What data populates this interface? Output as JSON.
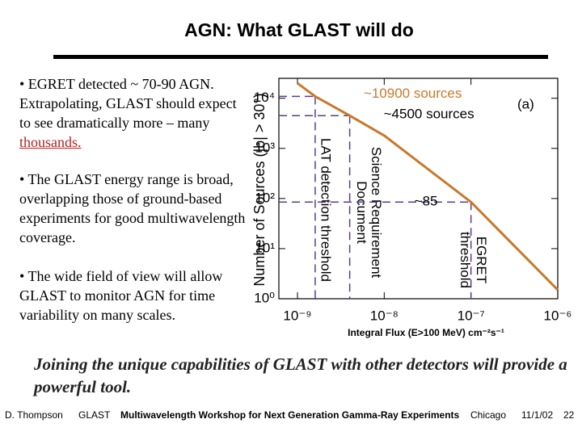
{
  "title": "AGN: What GLAST will do",
  "bullets": [
    [
      "• EGRET detected ~ 70-90 AGN. Extrapolating, GLAST should expect to see dramatically more – many ",
      "thousands."
    ],
    [
      "• The GLAST energy range is broad, overlapping those of ground-based experiments for good multiwavelength coverage."
    ],
    [
      "• The wide field of view will allow GLAST to monitor AGN for time variability on many scales."
    ]
  ],
  "conclusion": "Joining the unique capabilities of GLAST with other detectors will provide a powerful tool.",
  "footer": [
    "D. Thompson",
    "GLAST",
    "Multiwavelength Workshop for Next Generation Gamma-Ray Experiments",
    "Chicago",
    "11/1/02",
    "22"
  ],
  "chart_data": {
    "type": "line",
    "x_label": "Integral Flux (E>100 MeV) cm⁻²s⁻¹",
    "y_label": "Number of Sources (|b| > 30°)",
    "panel_label": "(a)",
    "x": [
      1e-09,
      1.6e-09,
      4e-09,
      1e-08,
      1e-07,
      1e-06
    ],
    "series": [
      {
        "color": "#c8782a",
        "values": [
          20000,
          10900,
          4500,
          1800,
          85,
          1.5
        ]
      }
    ],
    "log_x": true,
    "log_y": true,
    "xlim": [
      1e-09,
      1e-06
    ],
    "ylim": [
      1,
      25000
    ],
    "xticks": [
      {
        "value": 1e-09,
        "label": "10⁻⁹"
      },
      {
        "value": 1e-08,
        "label": "10⁻⁸"
      },
      {
        "value": 1e-07,
        "label": "10⁻⁷"
      },
      {
        "value": 1e-06,
        "label": "10⁻⁶"
      }
    ],
    "yticks": [
      {
        "value": 1,
        "label": "10⁰"
      },
      {
        "value": 10,
        "label": "10¹"
      },
      {
        "value": 100,
        "label": "10²"
      },
      {
        "value": 1000,
        "label": "10³"
      },
      {
        "value": 10000,
        "label": "10⁴"
      }
    ],
    "thresholds": [
      {
        "x": 1.6e-09,
        "y": 10900,
        "label": "~10900 sources",
        "vlabel": [
          "LAT detection threshold"
        ]
      },
      {
        "x": 4e-09,
        "y": 4500,
        "label": "~4500 sources",
        "vlabel": [
          "Science Requirement",
          "Document"
        ]
      },
      {
        "x": 1e-07,
        "y": 85,
        "label": "~85",
        "vlabel": [
          "EGRET",
          "threshold"
        ]
      }
    ],
    "threshold_color": "#5a3c8c"
  }
}
